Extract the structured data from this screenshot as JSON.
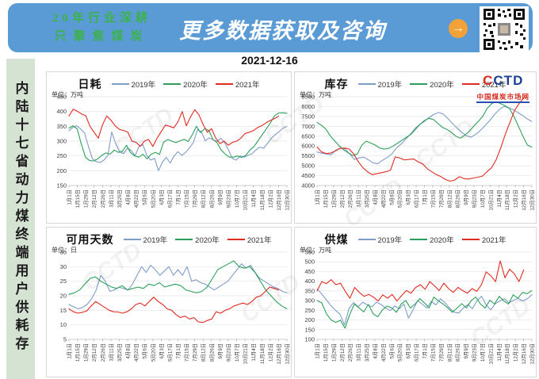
{
  "banner": {
    "tagline_line1": "20年行业深耕",
    "tagline_line2": "只聚焦煤炭",
    "headline": "更多数据获取及咨询",
    "arrow_icon": "→",
    "background_color": "#5b9bd5",
    "tagline_color": "#3cb14c",
    "arrow_color": "#f2a237"
  },
  "date": "2021-12-16",
  "sidebar_text": "内陆十七省动力煤终端用户供耗存",
  "watermark": "CCTD",
  "logo": {
    "c1": "C",
    "rest": "CTD",
    "subtitle": "中国煤炭市场网"
  },
  "x_labels": [
    "1月1日",
    "1月15日",
    "1月29日",
    "2月12日",
    "2月26日",
    "3月11日",
    "3月25日",
    "4月8日",
    "4月22日",
    "5月6日",
    "5月20日",
    "6月3日",
    "6月17日",
    "7月1日",
    "7月15日",
    "7月29日",
    "8月12日",
    "8月26日",
    "9月9日",
    "9月23日",
    "10月7日",
    "10月21日",
    "11月4日",
    "11月18日",
    "12月2日",
    "12月16日",
    "12月30日"
  ],
  "legend_labels": [
    "2019年",
    "2020年",
    "2021年"
  ],
  "series_colors": {
    "y2019": "#7f9dc9",
    "y2020": "#2ca05a",
    "y2021": "#e02b20"
  },
  "chart_data": [
    {
      "type": "line",
      "title": "日耗",
      "unit": "单位：万吨",
      "ylim": [
        150,
        450
      ],
      "ystep": 50,
      "grid": true,
      "legend_position": "top",
      "series": [
        {
          "name": "2019年",
          "color": "#7f9dc9",
          "end_frac": 1,
          "values": [
            335,
            346,
            352,
            341,
            328,
            282,
            241,
            231,
            228,
            236,
            252,
            331,
            292,
            264,
            258,
            276,
            268,
            251,
            282,
            288,
            252,
            236,
            242,
            200,
            229,
            245,
            226,
            250,
            264,
            252,
            262,
            278,
            296,
            338,
            332,
            301,
            311,
            305,
            299,
            310,
            295,
            270,
            241,
            236,
            250,
            246,
            252,
            257,
            270,
            280,
            276,
            292,
            310,
            322,
            332,
            344,
            350
          ]
        },
        {
          "name": "2020年",
          "color": "#2ca05a",
          "end_frac": 1,
          "values": [
            344,
            352,
            341,
            290,
            246,
            234,
            233,
            240,
            252,
            260,
            256,
            270,
            262,
            266,
            286,
            261,
            250,
            246,
            256,
            240,
            256,
            262,
            255,
            296,
            306,
            300,
            295,
            301,
            306,
            299,
            322,
            350,
            329,
            342,
            336,
            306,
            295,
            270,
            256,
            246,
            246,
            250,
            245,
            252,
            270,
            282,
            302,
            322,
            342,
            362,
            386,
            395,
            396,
            394
          ]
        },
        {
          "name": "2021年",
          "color": "#e02b20",
          "end_frac": 0.962,
          "values": [
            385,
            408,
            401,
            392,
            386,
            350,
            330,
            310,
            355,
            385,
            371,
            352,
            340,
            336,
            331,
            300,
            296,
            282,
            300,
            306,
            282,
            310,
            332,
            354,
            350,
            345,
            366,
            400,
            352,
            382,
            406,
            389,
            356,
            330,
            342,
            310,
            292,
            300,
            286,
            296,
            300,
            310,
            326,
            330,
            336,
            346,
            352,
            362,
            370,
            376,
            385
          ]
        }
      ]
    },
    {
      "type": "line",
      "title": "库存",
      "unit": "单位：万吨",
      "ylim": [
        4000,
        8500
      ],
      "ystep": 500,
      "grid": true,
      "legend_position": "top",
      "series": [
        {
          "name": "2019年",
          "color": "#7f9dc9",
          "end_frac": 1,
          "values": [
            5700,
            5640,
            5600,
            5560,
            5800,
            5900,
            5860,
            5600,
            5320,
            5400,
            5440,
            5300,
            5150,
            5100,
            5280,
            5420,
            5600,
            5900,
            6100,
            6350,
            6600,
            6900,
            7100,
            7250,
            7450,
            7600,
            7700,
            7620,
            7400,
            7150,
            6900,
            6700,
            6520,
            6450,
            6600,
            6800,
            7050,
            7300,
            7600,
            7850,
            8000,
            7950,
            7850,
            7700,
            7550,
            7380,
            7250
          ]
        },
        {
          "name": "2020年",
          "color": "#2ca05a",
          "end_frac": 1,
          "values": [
            7200,
            7050,
            6850,
            6500,
            6250,
            6000,
            5800,
            5650,
            5520,
            5600,
            6050,
            6250,
            6150,
            6050,
            5900,
            5850,
            5880,
            6000,
            6150,
            6300,
            6450,
            6600,
            6850,
            7100,
            7300,
            7400,
            7350,
            7150,
            6950,
            6850,
            6700,
            6500,
            6400,
            6550,
            6750,
            7000,
            7250,
            7500,
            7900,
            8150,
            8250,
            8150,
            8050,
            7900,
            7500,
            7000,
            6500,
            6050,
            5950
          ]
        },
        {
          "name": "2021年",
          "color": "#e02b20",
          "end_frac": 0.962,
          "values": [
            5950,
            5700,
            5620,
            5650,
            5750,
            5880,
            5900,
            5850,
            5600,
            5200,
            4900,
            4700,
            4550,
            4600,
            4650,
            4700,
            4780,
            5450,
            5400,
            5300,
            5320,
            5350,
            5200,
            5100,
            4850,
            4700,
            4550,
            4450,
            4300,
            4220,
            4280,
            4450,
            4350,
            4330,
            4380,
            4420,
            4480,
            4700,
            4900,
            5300,
            5900,
            6600,
            7200,
            7800,
            8150,
            8450
          ]
        }
      ]
    },
    {
      "type": "line",
      "title": "可用天数",
      "unit": "单位：日",
      "ylim": [
        5,
        35
      ],
      "ystep": 5,
      "grid": true,
      "legend_position": "top",
      "series": [
        {
          "name": "2019年",
          "color": "#7f9dc9",
          "end_frac": 1,
          "values": [
            17,
            16.2,
            15.5,
            16,
            17,
            19,
            22,
            27,
            25,
            21.5,
            22,
            23,
            22.5,
            22,
            24,
            27,
            30,
            28,
            30.5,
            29,
            27,
            28.5,
            30,
            27,
            29,
            27,
            30,
            25,
            25.5,
            24.5,
            24,
            23,
            22,
            23,
            24,
            25,
            27,
            29,
            31,
            29.5,
            30.5,
            28,
            26,
            25,
            24,
            23,
            22.5,
            21.5,
            21
          ]
        },
        {
          "name": "2020年",
          "color": "#2ca05a",
          "end_frac": 1,
          "values": [
            20.5,
            21,
            22,
            24,
            26,
            26.5,
            25,
            24,
            23,
            22.5,
            23.5,
            22,
            22.5,
            23,
            22.5,
            24,
            23.5,
            24.5,
            23,
            23.5,
            24,
            23.5,
            22,
            21.5,
            21,
            21.5,
            23,
            26,
            29,
            30,
            31,
            32,
            30,
            29.5,
            30,
            28,
            25,
            22,
            20,
            18,
            16.5,
            15.5
          ]
        },
        {
          "name": "2021年",
          "color": "#e02b20",
          "end_frac": 0.962,
          "values": [
            15.5,
            14.5,
            14,
            14.3,
            14.8,
            16.5,
            18,
            17,
            16,
            15,
            14.5,
            14.4,
            14,
            14.5,
            15.5,
            17,
            17.5,
            16.5,
            18,
            19.5,
            18,
            17,
            15.5,
            15,
            13.5,
            12.5,
            13,
            12,
            12.5,
            11,
            10.8,
            11.5,
            12,
            14.5,
            14,
            15,
            15.5,
            16.5,
            17,
            17.5,
            17,
            18,
            19.5,
            20,
            21.5,
            23,
            22.5,
            22
          ]
        }
      ]
    },
    {
      "type": "line",
      "title": "供煤",
      "unit": "单位：万吨",
      "ylim": [
        100,
        550
      ],
      "ystep": 50,
      "grid": true,
      "legend_position": "top",
      "series": [
        {
          "name": "2019年",
          "color": "#7f9dc9",
          "end_frac": 1,
          "values": [
            360,
            335,
            305,
            275,
            250,
            230,
            175,
            260,
            290,
            268,
            292,
            278,
            268,
            292,
            280,
            262,
            248,
            272,
            258,
            282,
            210,
            252,
            300,
            282,
            262,
            296,
            278,
            310,
            288,
            262,
            240,
            236,
            262,
            280,
            258,
            300,
            322,
            278,
            252,
            284,
            298,
            310,
            288,
            302,
            312,
            298,
            310,
            330
          ]
        },
        {
          "name": "2020年",
          "color": "#2ca05a",
          "end_frac": 1,
          "values": [
            300,
            288,
            232,
            200,
            188,
            198,
            158,
            228,
            282,
            262,
            242,
            280,
            232,
            216,
            252,
            272,
            262,
            240,
            282,
            300,
            262,
            282,
            310,
            288,
            262,
            318,
            298,
            282,
            262,
            240,
            262,
            284,
            262,
            300,
            318,
            282,
            262,
            302,
            282,
            322,
            298,
            282,
            330,
            312,
            342,
            336,
            352
          ]
        },
        {
          "name": "2021年",
          "color": "#e02b20",
          "end_frac": 0.962,
          "values": [
            350,
            398,
            388,
            408,
            382,
            390,
            348,
            312,
            368,
            342,
            322,
            332,
            318,
            298,
            330,
            312,
            332,
            298,
            326,
            352,
            338,
            368,
            382,
            358,
            398,
            376,
            352,
            390,
            362,
            342,
            368,
            352,
            338,
            362,
            348,
            382,
            448,
            428,
            398,
            505,
            418,
            462,
            438,
            398,
            458
          ]
        }
      ]
    }
  ]
}
